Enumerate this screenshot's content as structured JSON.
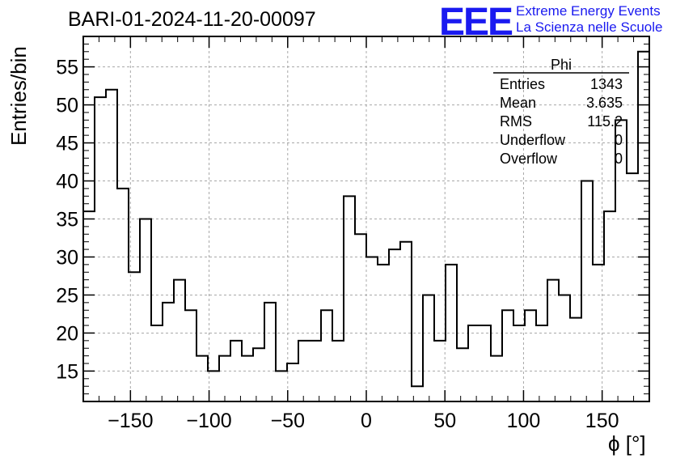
{
  "title": "BARI-01-2024-11-20-00097",
  "logo": {
    "mark": "EEE",
    "line1": "Extreme Energy Events",
    "line2": "La Scienza nelle Scuole",
    "color": "#1a1af0"
  },
  "stats_box": {
    "name": "Phi",
    "rows": [
      {
        "label": "Entries",
        "value": "1343"
      },
      {
        "label": "Mean",
        "value": "3.635"
      },
      {
        "label": "RMS",
        "value": "115.2"
      },
      {
        "label": "Underflow",
        "value": "0"
      },
      {
        "label": "Overflow",
        "value": "0"
      }
    ]
  },
  "chart_data": {
    "type": "bar",
    "histogram": true,
    "xlabel": "ϕ [°]",
    "ylabel": "Entries/bin",
    "xlim": [
      -180,
      180
    ],
    "ylim": [
      11,
      59
    ],
    "bin_width": 7.2,
    "x_ticks": [
      -150,
      -100,
      -50,
      0,
      50,
      100,
      150
    ],
    "x_tick_labels": [
      "−150",
      "−100",
      "−50",
      "0",
      "50",
      "100",
      "150"
    ],
    "y_ticks": [
      15,
      20,
      25,
      30,
      35,
      40,
      45,
      50,
      55
    ],
    "y_tick_labels": [
      "15",
      "20",
      "25",
      "30",
      "35",
      "40",
      "45",
      "50",
      "55"
    ],
    "grid": true,
    "values": [
      36,
      51,
      52,
      39,
      28,
      35,
      21,
      24,
      27,
      23,
      17,
      15,
      17,
      19,
      17,
      18,
      24,
      15,
      16,
      19,
      19,
      23,
      19,
      38,
      33,
      30,
      29,
      31,
      32,
      13,
      25,
      19,
      29,
      18,
      21,
      21,
      17,
      23,
      21,
      23,
      21,
      27,
      25,
      22,
      40,
      29,
      36,
      48,
      41,
      57
    ]
  }
}
